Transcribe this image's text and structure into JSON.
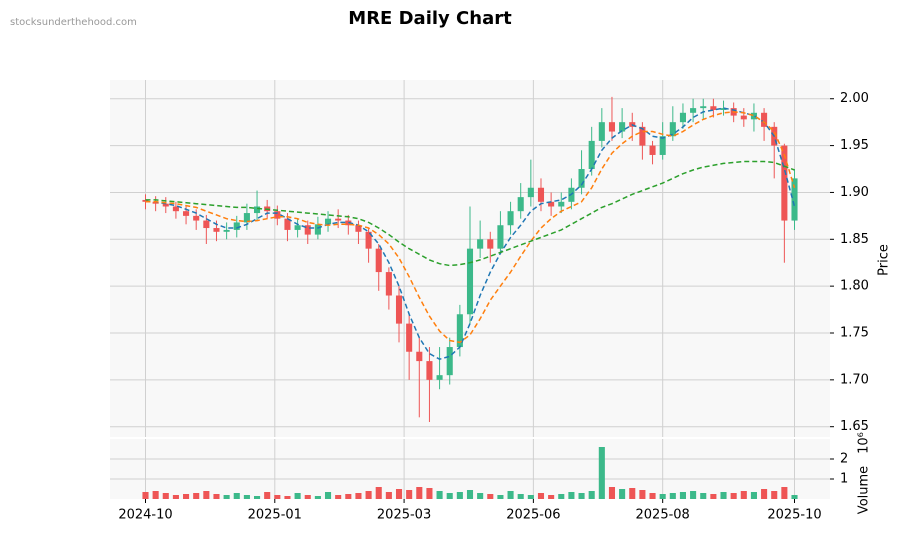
{
  "chart_data": {
    "type": "candlestick",
    "title": "MRE Daily Chart",
    "watermark": "stocksunderthehood.com",
    "ylabel": "Price",
    "volume_label": "Volume",
    "volume_scale": "10⁶",
    "up_color": "#3cb98a",
    "down_color": "#ee5555",
    "grid": true,
    "xlim": [
      -3.5,
      67.5
    ],
    "xticks": [
      {
        "value": 0,
        "label": "2024-10"
      },
      {
        "value": 12.75,
        "label": "2025-01"
      },
      {
        "value": 25.5,
        "label": "2025-03"
      },
      {
        "value": 38.25,
        "label": "2025-06"
      },
      {
        "value": 51,
        "label": "2025-08"
      },
      {
        "value": 64,
        "label": "2025-10"
      }
    ],
    "ylim": [
      1.639,
      2.02
    ],
    "yticks": [
      {
        "value": 1.65,
        "label": "1.65"
      },
      {
        "value": 1.7,
        "label": "1.70"
      },
      {
        "value": 1.75,
        "label": "1.75"
      },
      {
        "value": 1.8,
        "label": "1.80"
      },
      {
        "value": 1.85,
        "label": "1.85"
      },
      {
        "value": 1.9,
        "label": "1.90"
      },
      {
        "value": 1.95,
        "label": "1.95"
      },
      {
        "value": 2.0,
        "label": "2.00"
      }
    ],
    "y2lim": [
      0,
      3
    ],
    "y2ticks": [
      1,
      2
    ],
    "open": [
      1.892,
      1.89,
      1.888,
      1.885,
      1.88,
      1.875,
      1.87,
      1.862,
      1.858,
      1.86,
      1.868,
      1.878,
      1.885,
      1.88,
      1.872,
      1.86,
      1.865,
      1.855,
      1.866,
      1.872,
      1.87,
      1.865,
      1.858,
      1.84,
      1.815,
      1.79,
      1.76,
      1.73,
      1.72,
      1.7,
      1.705,
      1.735,
      1.77,
      1.84,
      1.85,
      1.84,
      1.865,
      1.88,
      1.895,
      1.905,
      1.89,
      1.885,
      1.89,
      1.905,
      1.925,
      1.955,
      1.975,
      1.965,
      1.975,
      1.97,
      1.95,
      1.94,
      1.96,
      1.975,
      1.985,
      1.99,
      1.992,
      1.988,
      1.99,
      1.982,
      1.978,
      1.985,
      1.97,
      1.95,
      1.87
    ],
    "high": [
      1.898,
      1.896,
      1.895,
      1.89,
      1.886,
      1.882,
      1.876,
      1.87,
      1.868,
      1.875,
      1.888,
      1.902,
      1.892,
      1.886,
      1.878,
      1.872,
      1.87,
      1.874,
      1.88,
      1.882,
      1.876,
      1.87,
      1.862,
      1.845,
      1.82,
      1.8,
      1.77,
      1.745,
      1.735,
      1.735,
      1.745,
      1.78,
      1.885,
      1.87,
      1.858,
      1.88,
      1.89,
      1.91,
      1.935,
      1.915,
      1.9,
      1.9,
      1.915,
      1.945,
      1.97,
      1.99,
      2.002,
      1.99,
      1.985,
      1.975,
      1.955,
      1.975,
      1.992,
      1.995,
      2.0,
      2.0,
      2.0,
      1.998,
      1.996,
      1.99,
      1.995,
      1.99,
      1.975,
      1.952,
      1.925
    ],
    "low": [
      1.882,
      1.88,
      1.878,
      1.872,
      1.866,
      1.86,
      1.845,
      1.848,
      1.85,
      1.852,
      1.86,
      1.87,
      1.872,
      1.865,
      1.848,
      1.852,
      1.845,
      1.85,
      1.858,
      1.862,
      1.855,
      1.845,
      1.825,
      1.795,
      1.775,
      1.74,
      1.7,
      1.66,
      1.655,
      1.69,
      1.695,
      1.725,
      1.76,
      1.83,
      1.825,
      1.835,
      1.855,
      1.872,
      1.885,
      1.88,
      1.875,
      1.878,
      1.882,
      1.898,
      1.918,
      1.948,
      1.955,
      1.958,
      1.955,
      1.935,
      1.93,
      1.935,
      1.955,
      1.968,
      1.975,
      1.978,
      1.98,
      1.982,
      1.975,
      1.97,
      1.965,
      1.955,
      1.915,
      1.825,
      1.86
    ],
    "close": [
      1.89,
      1.888,
      1.885,
      1.88,
      1.875,
      1.87,
      1.862,
      1.858,
      1.86,
      1.868,
      1.878,
      1.885,
      1.88,
      1.872,
      1.86,
      1.865,
      1.855,
      1.866,
      1.872,
      1.87,
      1.865,
      1.858,
      1.84,
      1.815,
      1.79,
      1.76,
      1.73,
      1.72,
      1.7,
      1.705,
      1.735,
      1.77,
      1.84,
      1.85,
      1.84,
      1.865,
      1.88,
      1.895,
      1.905,
      1.89,
      1.885,
      1.89,
      1.905,
      1.925,
      1.955,
      1.975,
      1.965,
      1.975,
      1.97,
      1.95,
      1.94,
      1.96,
      1.975,
      1.985,
      1.99,
      1.992,
      1.988,
      1.99,
      1.982,
      1.978,
      1.985,
      1.97,
      1.95,
      1.87,
      1.915
    ],
    "volume": [
      0.35,
      0.4,
      0.3,
      0.2,
      0.25,
      0.3,
      0.4,
      0.25,
      0.2,
      0.3,
      0.2,
      0.15,
      0.35,
      0.2,
      0.15,
      0.3,
      0.2,
      0.15,
      0.35,
      0.2,
      0.25,
      0.3,
      0.4,
      0.6,
      0.35,
      0.5,
      0.45,
      0.6,
      0.55,
      0.4,
      0.3,
      0.35,
      0.45,
      0.3,
      0.25,
      0.2,
      0.4,
      0.25,
      0.2,
      0.3,
      0.2,
      0.25,
      0.35,
      0.3,
      0.4,
      2.6,
      0.6,
      0.5,
      0.55,
      0.45,
      0.3,
      0.25,
      0.3,
      0.35,
      0.4,
      0.3,
      0.25,
      0.35,
      0.3,
      0.4,
      0.35,
      0.5,
      0.4,
      0.6,
      0.2
    ],
    "moving_averages": [
      {
        "color": "#1f77b4",
        "values": [
          1.89,
          1.89,
          1.888,
          1.886,
          1.882,
          1.878,
          1.872,
          1.866,
          1.862,
          1.862,
          1.866,
          1.872,
          1.878,
          1.878,
          1.872,
          1.866,
          1.862,
          1.862,
          1.866,
          1.868,
          1.868,
          1.865,
          1.858,
          1.845,
          1.825,
          1.8,
          1.77,
          1.745,
          1.728,
          1.722,
          1.725,
          1.735,
          1.76,
          1.79,
          1.815,
          1.835,
          1.852,
          1.865,
          1.88,
          1.888,
          1.89,
          1.892,
          1.898,
          1.908,
          1.925,
          1.945,
          1.958,
          1.966,
          1.972,
          1.968,
          1.96,
          1.958,
          1.962,
          1.97,
          1.98,
          1.986,
          1.988,
          1.99,
          1.988,
          1.985,
          1.982,
          1.975,
          1.96,
          1.925,
          1.885
        ]
      },
      {
        "color": "#ff7f0e",
        "values": [
          1.89,
          1.89,
          1.889,
          1.888,
          1.886,
          1.884,
          1.88,
          1.876,
          1.872,
          1.87,
          1.869,
          1.87,
          1.872,
          1.874,
          1.874,
          1.872,
          1.868,
          1.866,
          1.865,
          1.866,
          1.866,
          1.865,
          1.862,
          1.855,
          1.845,
          1.83,
          1.81,
          1.788,
          1.768,
          1.752,
          1.742,
          1.74,
          1.748,
          1.765,
          1.785,
          1.8,
          1.815,
          1.832,
          1.848,
          1.862,
          1.872,
          1.88,
          1.885,
          1.89,
          1.905,
          1.925,
          1.942,
          1.952,
          1.96,
          1.965,
          1.965,
          1.962,
          1.96,
          1.965,
          1.972,
          1.978,
          1.982,
          1.985,
          1.986,
          1.985,
          1.982,
          1.975,
          1.965,
          1.94,
          1.905
        ]
      },
      {
        "color": "#2ca02c",
        "values": [
          1.892,
          1.892,
          1.891,
          1.89,
          1.889,
          1.888,
          1.887,
          1.886,
          1.885,
          1.884,
          1.884,
          1.883,
          1.882,
          1.881,
          1.88,
          1.879,
          1.878,
          1.877,
          1.876,
          1.875,
          1.874,
          1.872,
          1.868,
          1.862,
          1.855,
          1.847,
          1.84,
          1.834,
          1.828,
          1.824,
          1.822,
          1.823,
          1.825,
          1.828,
          1.832,
          1.836,
          1.84,
          1.844,
          1.848,
          1.852,
          1.856,
          1.86,
          1.866,
          1.872,
          1.878,
          1.884,
          1.888,
          1.893,
          1.898,
          1.902,
          1.906,
          1.91,
          1.915,
          1.92,
          1.924,
          1.927,
          1.929,
          1.931,
          1.932,
          1.933,
          1.933,
          1.933,
          1.932,
          1.928,
          1.924
        ]
      }
    ]
  }
}
